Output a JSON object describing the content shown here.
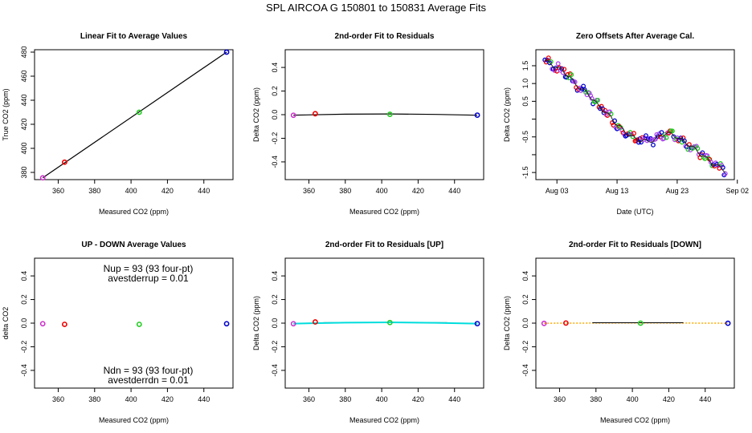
{
  "figure": {
    "title": "SPL   AIRCOA G   150801 to 150831   Average Fits"
  },
  "colors": {
    "purple": "#cc33cc",
    "red": "#ee0000",
    "green": "#22cc22",
    "blue": "#0000cc",
    "cyan": "#00dddd",
    "orange": "#ffaa00",
    "fit_line": "#000000",
    "offset_points": "#aa44ee"
  },
  "chart_data": [
    {
      "type": "scatter",
      "title": "Linear Fit to Average Values",
      "xlabel": "Measured CO2 (ppm)",
      "ylabel": "True CO2 (ppm)",
      "xlim": [
        347,
        456
      ],
      "ylim": [
        374,
        482
      ],
      "xticks": [
        360,
        380,
        400,
        420,
        440
      ],
      "yticks": [
        380,
        400,
        420,
        440,
        460,
        480
      ],
      "points": [
        {
          "x": 351.5,
          "y": 375.5,
          "color": "purple"
        },
        {
          "x": 363.5,
          "y": 388.5,
          "color": "red"
        },
        {
          "x": 404.5,
          "y": 430.0,
          "color": "green"
        },
        {
          "x": 452.5,
          "y": 480.0,
          "color": "blue"
        }
      ],
      "line": {
        "x": [
          351.5,
          452.5
        ],
        "y": [
          375.5,
          480.0
        ]
      }
    },
    {
      "type": "scatter",
      "title": "2nd-order Fit to Residuals",
      "xlabel": "Measured CO2 (ppm)",
      "ylabel": "Delta CO2 (ppm)",
      "xlim": [
        347,
        456
      ],
      "ylim": [
        -0.55,
        0.55
      ],
      "xticks": [
        360,
        380,
        400,
        420,
        440
      ],
      "yticks": [
        -0.4,
        -0.2,
        0.0,
        0.2,
        0.4
      ],
      "points": [
        {
          "x": 351.5,
          "y": -0.005,
          "color": "purple"
        },
        {
          "x": 363.5,
          "y": 0.008,
          "color": "red"
        },
        {
          "x": 404.5,
          "y": 0.003,
          "color": "green"
        },
        {
          "x": 452.5,
          "y": -0.004,
          "color": "blue"
        }
      ],
      "curve": {
        "x": [
          351.5,
          380,
          404.5,
          430,
          452.5
        ],
        "y": [
          -0.004,
          0.004,
          0.006,
          0.002,
          -0.005
        ]
      }
    },
    {
      "type": "line",
      "title": "Zero Offsets After Average Cal.",
      "xlabel": "Date (UTC)",
      "ylabel": "Delta CO2 (ppm)",
      "xlim": [
        -1.5,
        31.5
      ],
      "ylim": [
        -1.7,
        1.95
      ],
      "xticks": [
        {
          "v": 2,
          "label": "Aug 03"
        },
        {
          "v": 12,
          "label": "Aug 13"
        },
        {
          "v": 22,
          "label": "Aug 23"
        },
        {
          "v": 32,
          "label": "Sep 02"
        }
      ],
      "yticks": [
        -1.5,
        -1.0,
        -0.5,
        0.0,
        0.5,
        1.0,
        1.5
      ],
      "yticklabels": [
        "-1.5",
        "",
        "-0.5",
        "",
        "0.5",
        "1.0",
        "1.5"
      ],
      "series_x": [
        0,
        1,
        2,
        3,
        4,
        5,
        6,
        7,
        8,
        9,
        10,
        11,
        12,
        13,
        14,
        15,
        16,
        17,
        18,
        19,
        20,
        21,
        22,
        23,
        24,
        25,
        26,
        27,
        28,
        29,
        30
      ],
      "series_y": [
        1.65,
        1.55,
        1.45,
        1.35,
        1.2,
        1.0,
        0.85,
        0.75,
        0.55,
        0.35,
        0.2,
        0.05,
        -0.15,
        -0.3,
        -0.45,
        -0.55,
        -0.6,
        -0.62,
        -0.6,
        -0.5,
        -0.4,
        -0.42,
        -0.5,
        -0.62,
        -0.72,
        -0.85,
        -1.0,
        -1.12,
        -1.25,
        -1.35,
        -1.45
      ]
    },
    {
      "type": "scatter",
      "title": "UP - DOWN Average Values",
      "xlabel": "Measured CO2 (ppm)",
      "ylabel": "delta CO2",
      "xlim": [
        347,
        456
      ],
      "ylim": [
        -0.55,
        0.55
      ],
      "xticks": [
        360,
        380,
        400,
        420,
        440
      ],
      "yticks": [
        -0.4,
        -0.2,
        0.0,
        0.2,
        0.4
      ],
      "points": [
        {
          "x": 351.5,
          "y": -0.005,
          "color": "purple"
        },
        {
          "x": 363.5,
          "y": -0.01,
          "color": "red"
        },
        {
          "x": 404.5,
          "y": -0.01,
          "color": "green"
        },
        {
          "x": 452.5,
          "y": -0.005,
          "color": "blue"
        }
      ],
      "annotations": {
        "nup": "Nup = 93 (93 four-pt)",
        "avestderrup": "avestderrup =  0.01",
        "ndn": "Ndn = 93 (93 four-pt)",
        "avestderrdn": "avestderrdn =  0.01"
      }
    },
    {
      "type": "scatter",
      "title": "2nd-order Fit to Residuals [UP]",
      "xlabel": "Measured CO2 (ppm)",
      "ylabel": "Delta CO2 (ppm)",
      "xlim": [
        347,
        456
      ],
      "ylim": [
        -0.55,
        0.55
      ],
      "xticks": [
        360,
        380,
        400,
        420,
        440
      ],
      "yticks": [
        -0.4,
        -0.2,
        0.0,
        0.2,
        0.4
      ],
      "points": [
        {
          "x": 351.5,
          "y": -0.005,
          "color": "purple"
        },
        {
          "x": 363.5,
          "y": 0.01,
          "color": "red"
        },
        {
          "x": 404.5,
          "y": 0.005,
          "color": "green"
        },
        {
          "x": 452.5,
          "y": -0.004,
          "color": "blue"
        }
      ],
      "curve": {
        "x": [
          351.5,
          380,
          404.5,
          430,
          452.5
        ],
        "y": [
          -0.004,
          0.004,
          0.007,
          0.003,
          -0.004
        ]
      },
      "curve_color": "cyan"
    },
    {
      "type": "scatter",
      "title": "2nd-order Fit to Residuals [DOWN]",
      "xlabel": "Measured CO2 (ppm)",
      "ylabel": "Delta CO2 (ppm)",
      "xlim": [
        347,
        456
      ],
      "ylim": [
        -0.55,
        0.55
      ],
      "xticks": [
        360,
        380,
        400,
        420,
        440
      ],
      "yticks": [
        -0.4,
        -0.2,
        0.0,
        0.2,
        0.4
      ],
      "points": [
        {
          "x": 351.5,
          "y": -0.002,
          "color": "purple"
        },
        {
          "x": 363.5,
          "y": 0.001,
          "color": "red"
        },
        {
          "x": 404.5,
          "y": 0.0,
          "color": "green"
        },
        {
          "x": 452.5,
          "y": -0.001,
          "color": "blue"
        }
      ],
      "curve": {
        "x": [
          351.5,
          380,
          404.5,
          430,
          452.5
        ],
        "y": [
          -0.001,
          0.001,
          0.002,
          0.001,
          -0.001
        ]
      },
      "curve_color": "orange"
    }
  ]
}
